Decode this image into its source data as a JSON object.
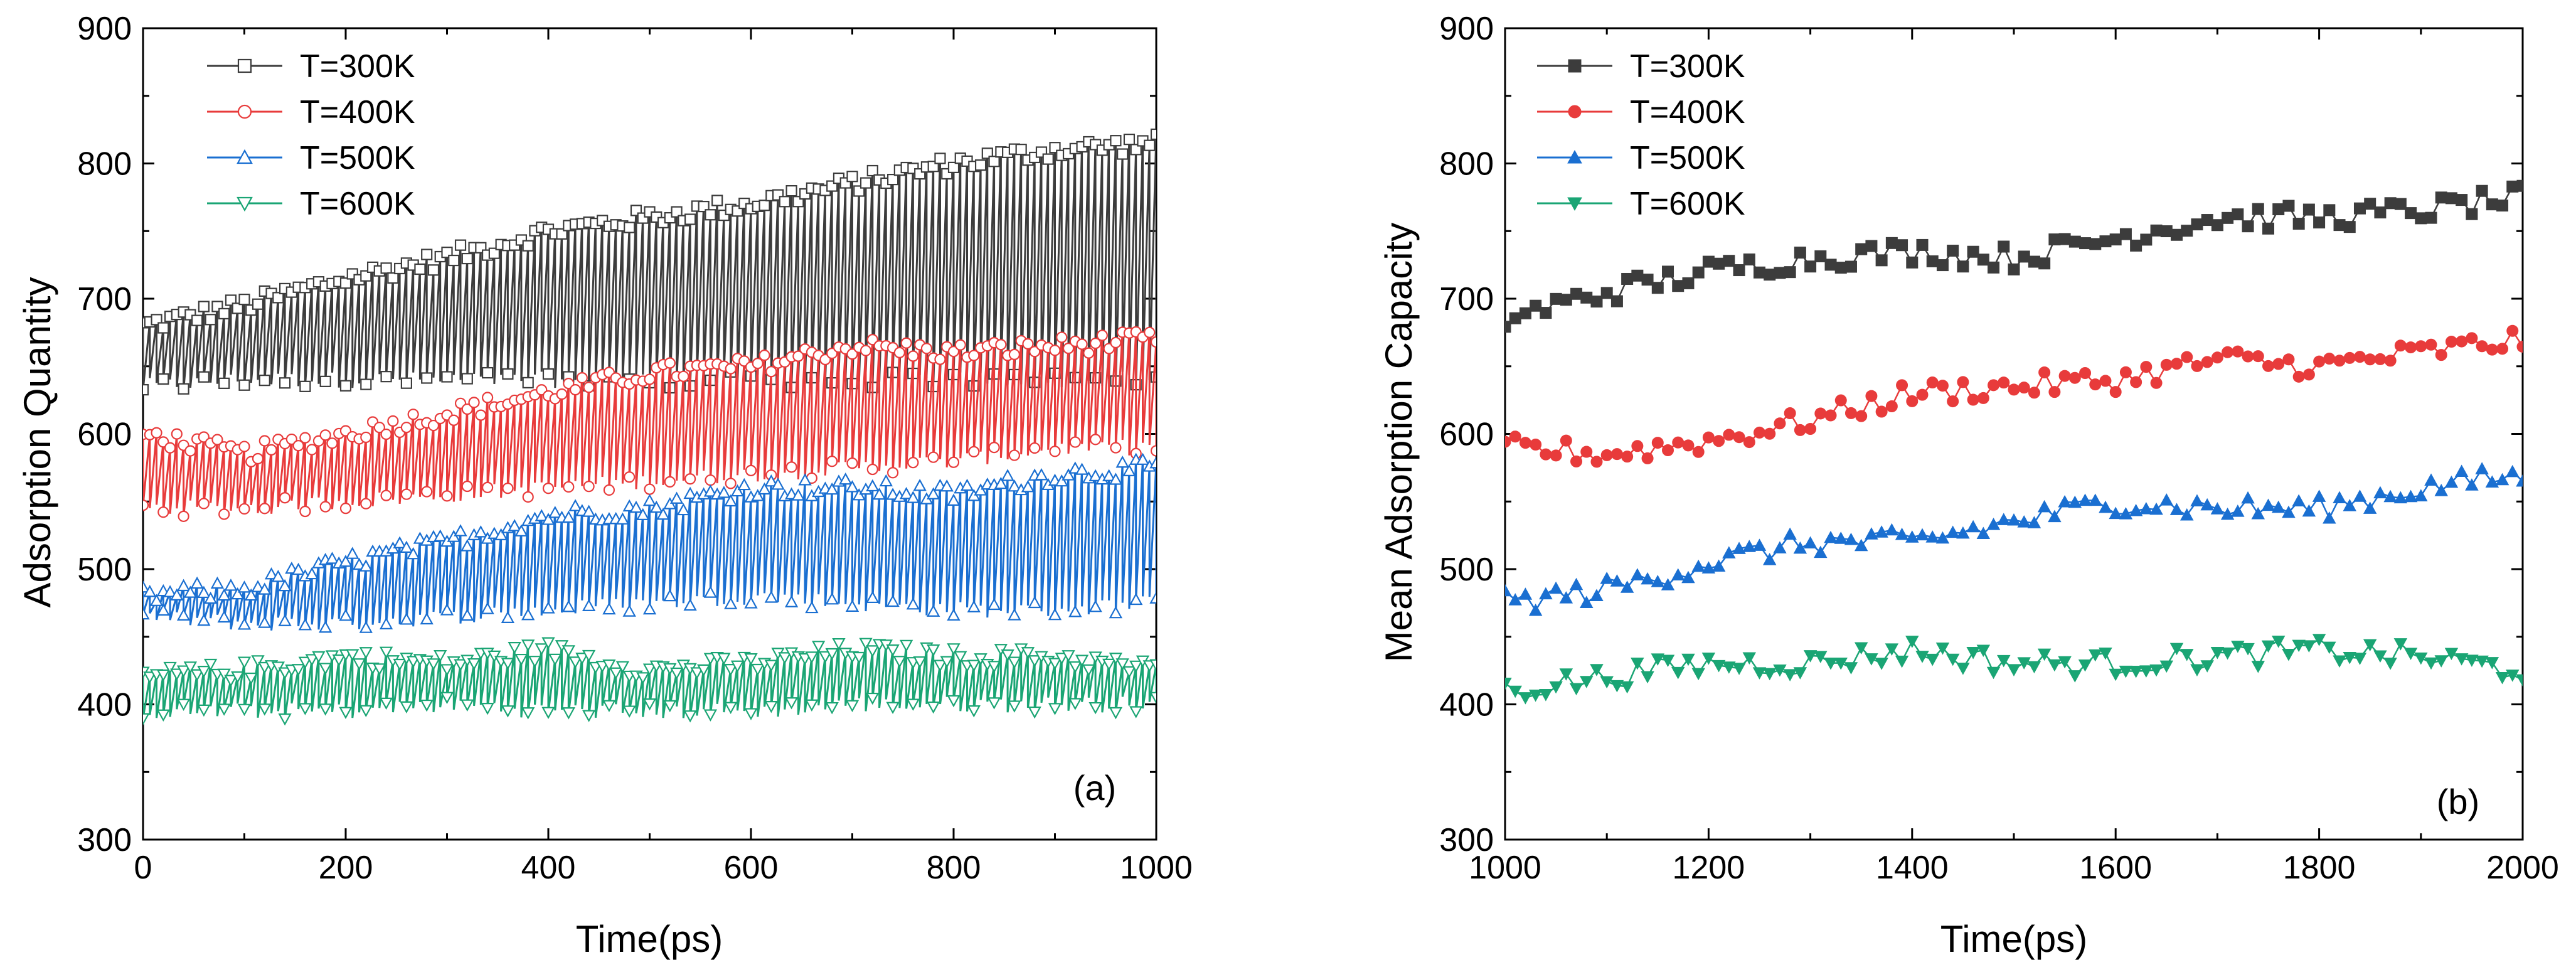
{
  "colors": {
    "T300": "#3c3c3c",
    "T400": "#e83b3b",
    "T500": "#1a6fd1",
    "T600": "#1aa574",
    "axis": "#000000"
  },
  "chart_data": [
    {
      "type": "scatter",
      "panel": "(a)",
      "title": "",
      "xlabel": "Time(ps)",
      "ylabel": "Adsorption Quantity",
      "xlim": [
        0,
        1000
      ],
      "ylim": [
        300,
        900
      ],
      "xticks": [
        "0",
        "200",
        "400",
        "600",
        "800",
        "1000"
      ],
      "yticks": [
        "300",
        "400",
        "500",
        "600",
        "700",
        "800",
        "900"
      ],
      "legend_position": "top-left",
      "series": [
        {
          "name": "T=300K",
          "color_key": "T300",
          "marker": "open-square",
          "x": [
            0,
            100,
            200,
            300,
            400,
            500,
            600,
            700,
            800,
            900,
            1000
          ],
          "upper": [
            680,
            695,
            715,
            730,
            750,
            760,
            770,
            785,
            800,
            810,
            815
          ],
          "lower": [
            635,
            640,
            640,
            640,
            640,
            640,
            640,
            640,
            640,
            640,
            640
          ]
        },
        {
          "name": "T=400K",
          "color_key": "T400",
          "marker": "open-circle",
          "x": [
            0,
            100,
            200,
            300,
            400,
            500,
            600,
            700,
            800,
            900,
            1000
          ],
          "upper": [
            600,
            585,
            600,
            615,
            630,
            645,
            650,
            665,
            660,
            665,
            670
          ],
          "lower": [
            545,
            545,
            550,
            555,
            560,
            565,
            570,
            575,
            580,
            590,
            590
          ]
        },
        {
          "name": "T=500K",
          "color_key": "T500",
          "marker": "open-triangle-up",
          "x": [
            0,
            100,
            200,
            300,
            400,
            500,
            600,
            700,
            800,
            900,
            1000
          ],
          "upper": [
            480,
            485,
            505,
            520,
            540,
            545,
            560,
            560,
            555,
            570,
            575
          ],
          "lower": [
            465,
            460,
            460,
            465,
            470,
            475,
            480,
            475,
            470,
            470,
            475
          ]
        },
        {
          "name": "T=600K",
          "color_key": "T600",
          "marker": "open-triangle-down",
          "x": [
            0,
            100,
            200,
            300,
            400,
            500,
            600,
            700,
            800,
            900,
            1000
          ],
          "upper": [
            420,
            425,
            435,
            430,
            440,
            425,
            430,
            440,
            435,
            435,
            425
          ],
          "lower": [
            395,
            395,
            395,
            400,
            395,
            395,
            395,
            400,
            400,
            400,
            400
          ]
        }
      ]
    },
    {
      "type": "line",
      "panel": "(b)",
      "title": "",
      "xlabel": "Time(ps)",
      "ylabel": "Mean Adsorption Capacity",
      "xlim": [
        1000,
        2000
      ],
      "ylim": [
        300,
        900
      ],
      "xticks": [
        "1000",
        "1200",
        "1400",
        "1600",
        "1800",
        "2000"
      ],
      "yticks": [
        "300",
        "400",
        "500",
        "600",
        "700",
        "800",
        "900"
      ],
      "legend_position": "top-left",
      "series": [
        {
          "name": "T=300K",
          "color_key": "T300",
          "marker": "filled-square",
          "x": [
            1000,
            1100,
            1200,
            1300,
            1400,
            1500,
            1600,
            1700,
            1800,
            1900,
            2000
          ],
          "y": [
            685,
            705,
            720,
            730,
            735,
            730,
            745,
            760,
            760,
            765,
            775
          ]
        },
        {
          "name": "T=400K",
          "color_key": "T400",
          "marker": "filled-circle",
          "x": [
            1000,
            1100,
            1200,
            1300,
            1400,
            1500,
            1600,
            1700,
            1800,
            1900,
            2000
          ],
          "y": [
            590,
            585,
            595,
            610,
            630,
            635,
            640,
            655,
            650,
            660,
            670
          ]
        },
        {
          "name": "T=500K",
          "color_key": "T500",
          "marker": "filled-triangle-up",
          "x": [
            1000,
            1100,
            1200,
            1300,
            1400,
            1500,
            1600,
            1700,
            1800,
            1900,
            2000
          ],
          "y": [
            475,
            485,
            505,
            520,
            520,
            535,
            550,
            545,
            545,
            560,
            570
          ]
        },
        {
          "name": "T=600K",
          "color_key": "T600",
          "marker": "filled-triangle-down",
          "x": [
            1000,
            1100,
            1200,
            1300,
            1400,
            1500,
            1600,
            1700,
            1800,
            1900,
            2000
          ],
          "y": [
            410,
            420,
            430,
            430,
            440,
            430,
            430,
            435,
            440,
            435,
            425
          ]
        }
      ]
    }
  ]
}
